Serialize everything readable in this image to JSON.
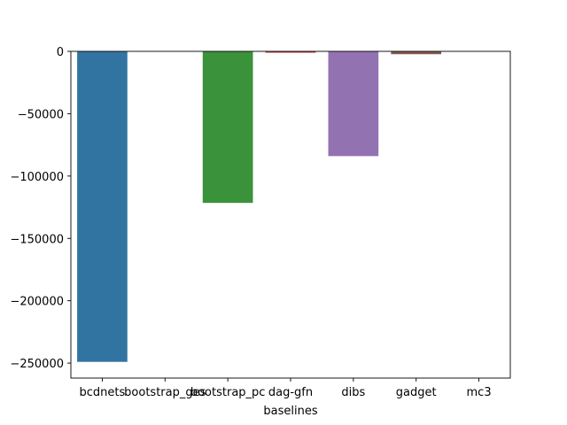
{
  "chart_data": {
    "type": "bar",
    "xlabel": "baselines",
    "ylabel": "",
    "ylim": [
      -262000,
      0
    ],
    "yticks": [
      0,
      -50000,
      -100000,
      -150000,
      -200000,
      -250000
    ],
    "ytick_labels": [
      "0",
      "−50000",
      "−100000",
      "−150000",
      "−200000",
      "−250000"
    ],
    "categories": [
      "bcdnets",
      "bootstrap_ges",
      "bootstrap_pc",
      "dag-gfn",
      "dibs",
      "gadget",
      "mc3"
    ],
    "values": [
      -249000,
      0,
      -121500,
      -1100,
      -84000,
      -2300,
      0
    ],
    "colors": [
      "#3274a1",
      "#e1812c",
      "#3a923a",
      "#c03d3e",
      "#9372b2",
      "#845b53",
      "#d684bd"
    ],
    "grid": false,
    "legend": "none"
  }
}
